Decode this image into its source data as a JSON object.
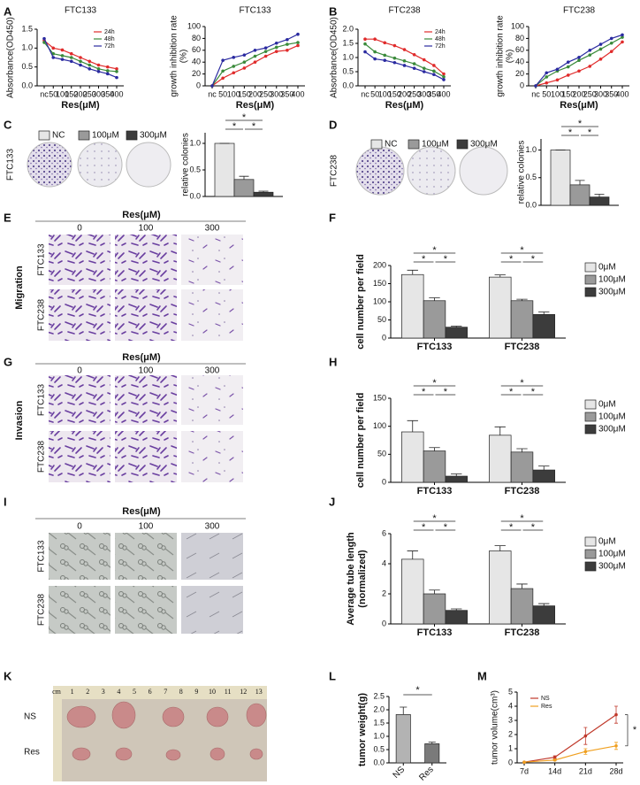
{
  "panel_letters": [
    "A",
    "B",
    "C",
    "D",
    "E",
    "F",
    "G",
    "H",
    "I",
    "J",
    "K",
    "L",
    "M"
  ],
  "colony_photos": [
    "FTC133",
    "FTC238"
  ],
  "micrographs": [
    {
      "header": "Res(μM)",
      "columns": [
        "0",
        "100",
        "300"
      ],
      "rows": [
        "FTC133",
        "FTC238"
      ],
      "side_label": "Migration"
    },
    {
      "header": "Res(μM)",
      "columns": [
        "0",
        "100",
        "300"
      ],
      "rows": [
        "FTC133",
        "FTC238"
      ],
      "side_label": "Invasion"
    },
    {
      "header": "Res(μM)",
      "columns": [
        "0",
        "100",
        "300"
      ],
      "rows": [
        "FTC133",
        "FTC238"
      ]
    }
  ],
  "xenograft_photo": {
    "ruler": [
      "cm",
      "1",
      "2",
      "3",
      "4",
      "5",
      "6",
      "7",
      "8",
      "9",
      "10",
      "11",
      "12",
      "13"
    ],
    "rows": [
      "NS",
      "Res"
    ]
  },
  "chart_data": [
    {
      "type": "line",
      "title": "FTC133",
      "xlabel": "Res(μM)",
      "ylabel": "Absorbance(OD450)",
      "categories": [
        "nc",
        "50",
        "100",
        "150",
        "200",
        "250",
        "300",
        "350",
        "400"
      ],
      "series": [
        {
          "name": "24h",
          "color": "#e02b2b",
          "values": [
            1.2,
            1.0,
            0.95,
            0.85,
            0.75,
            0.65,
            0.55,
            0.5,
            0.45
          ]
        },
        {
          "name": "48h",
          "color": "#3a8a3a",
          "values": [
            1.15,
            0.85,
            0.8,
            0.75,
            0.65,
            0.55,
            0.45,
            0.4,
            0.38
          ]
        },
        {
          "name": "72h",
          "color": "#2a2aa0",
          "values": [
            1.25,
            0.75,
            0.7,
            0.65,
            0.55,
            0.45,
            0.38,
            0.32,
            0.22
          ]
        }
      ],
      "ylim": [
        0,
        1.5
      ],
      "yticks": [
        {
          "value": 0,
          "label": "0.0"
        },
        0.5,
        {
          "value": 1,
          "label": "1.0"
        },
        1.5
      ]
    },
    {
      "type": "line",
      "title": "FTC133",
      "xlabel": "Res(μM)",
      "ylabel": [
        "growth inhibition rate",
        "(%)"
      ],
      "categories": [
        "nc",
        "50",
        "100",
        "150",
        "200",
        "250",
        "300",
        "350",
        "400"
      ],
      "series": [
        {
          "color": "#e02b2b",
          "values": [
            0,
            13,
            22,
            30,
            40,
            50,
            58,
            60,
            68
          ]
        },
        {
          "color": "#3a8a3a",
          "values": [
            0,
            25,
            33,
            40,
            50,
            58,
            65,
            70,
            73
          ]
        },
        {
          "color": "#2a2aa0",
          "values": [
            0,
            43,
            48,
            52,
            60,
            64,
            72,
            78,
            87
          ]
        }
      ],
      "ylim": [
        0,
        100
      ],
      "yticks": [
        0,
        20,
        40,
        60,
        80,
        100
      ]
    },
    {
      "type": "line",
      "title": "FTC238",
      "xlabel": "Res(μM)",
      "ylabel": "Absorbance(OD450)",
      "categories": [
        "nc",
        "50",
        "100",
        "150",
        "200",
        "250",
        "300",
        "350",
        "400"
      ],
      "series": [
        {
          "name": "24h",
          "color": "#e02b2b",
          "values": [
            1.65,
            1.65,
            1.52,
            1.42,
            1.28,
            1.1,
            0.92,
            0.72,
            0.42
          ]
        },
        {
          "name": "48h",
          "color": "#3a8a3a",
          "values": [
            1.48,
            1.2,
            1.08,
            0.98,
            0.88,
            0.78,
            0.62,
            0.52,
            0.32
          ]
        },
        {
          "name": "72h",
          "color": "#2a2aa0",
          "values": [
            1.2,
            0.95,
            0.9,
            0.82,
            0.72,
            0.62,
            0.5,
            0.4,
            0.22
          ]
        }
      ],
      "ylim": [
        0,
        2
      ],
      "yticks": [
        {
          "value": 0,
          "label": "0.0"
        },
        0.5,
        {
          "value": 1,
          "label": "1.0"
        },
        1.5,
        {
          "value": 2,
          "label": "2.0"
        }
      ]
    },
    {
      "type": "line",
      "title": "FTC238",
      "xlabel": "Res(μM)",
      "ylabel": [
        "growth inhibition rate",
        "(%)"
      ],
      "categories": [
        "nc",
        "50",
        "100",
        "150",
        "200",
        "250",
        "300",
        "350",
        "400"
      ],
      "series": [
        {
          "color": "#e02b2b",
          "values": [
            0,
            5,
            10,
            18,
            25,
            33,
            45,
            58,
            74
          ]
        },
        {
          "color": "#3a8a3a",
          "values": [
            0,
            15,
            25,
            32,
            43,
            52,
            62,
            72,
            82
          ]
        },
        {
          "color": "#2a2aa0",
          "values": [
            0,
            22,
            28,
            40,
            48,
            60,
            70,
            80,
            86
          ]
        }
      ],
      "ylim": [
        0,
        100
      ],
      "yticks": [
        0,
        20,
        40,
        60,
        80,
        100
      ]
    },
    {
      "type": "bar",
      "ylabel": "relative colonies",
      "categories": [
        null
      ],
      "series": [
        {
          "name": "NC",
          "color": "#e6e6e6",
          "values": [
            1.0
          ],
          "errors": [
            0
          ]
        },
        {
          "name": "100μM",
          "color": "#9a9a9a",
          "values": [
            0.32
          ],
          "errors": [
            0.06
          ]
        },
        {
          "name": "300μM",
          "color": "#3c3c3c",
          "values": [
            0.08
          ],
          "errors": [
            0.02
          ]
        }
      ],
      "ylim": [
        0,
        1.2
      ],
      "yticks": [
        {
          "value": 0,
          "label": "0.0"
        },
        0.5,
        {
          "value": 1,
          "label": "1.0"
        }
      ],
      "significance": [
        "*",
        "*",
        "*"
      ]
    },
    {
      "type": "bar",
      "ylabel": "relative colonies",
      "categories": [
        null
      ],
      "series": [
        {
          "name": "NC",
          "color": "#e6e6e6",
          "values": [
            1.0
          ],
          "errors": [
            0
          ]
        },
        {
          "name": "100μM",
          "color": "#9a9a9a",
          "values": [
            0.37
          ],
          "errors": [
            0.08
          ]
        },
        {
          "name": "300μM",
          "color": "#3c3c3c",
          "values": [
            0.15
          ],
          "errors": [
            0.05
          ]
        }
      ],
      "ylim": [
        0,
        1.2
      ],
      "yticks": [
        {
          "value": 0,
          "label": "0.0"
        },
        0.5,
        {
          "value": 1,
          "label": "1.0"
        }
      ],
      "significance": [
        "*",
        "*",
        "*"
      ]
    },
    {
      "type": "bar",
      "ylabel": "cell number per field",
      "categories": [
        "FTC133",
        "FTC238"
      ],
      "series": [
        {
          "name": "0μM",
          "color": "#e6e6e6",
          "values": [
            175,
            168
          ],
          "errors": [
            12,
            6
          ]
        },
        {
          "name": "100μM",
          "color": "#9a9a9a",
          "values": [
            103,
            103
          ],
          "errors": [
            8,
            4
          ]
        },
        {
          "name": "300μM",
          "color": "#3c3c3c",
          "values": [
            30,
            65
          ],
          "errors": [
            3,
            7
          ]
        }
      ],
      "ylim": [
        0,
        200
      ],
      "yticks": [
        0,
        50,
        100,
        150,
        200
      ],
      "significance": [
        "*",
        "*",
        "*",
        "*",
        "*",
        "*"
      ]
    },
    {
      "type": "bar",
      "ylabel": "cell number per field",
      "categories": [
        "FTC133",
        "FTC238"
      ],
      "series": [
        {
          "name": "0μM",
          "color": "#e6e6e6",
          "values": [
            90,
            84
          ],
          "errors": [
            20,
            15
          ]
        },
        {
          "name": "100μM",
          "color": "#9a9a9a",
          "values": [
            56,
            54
          ],
          "errors": [
            6,
            6
          ]
        },
        {
          "name": "300μM",
          "color": "#3c3c3c",
          "values": [
            11,
            22
          ],
          "errors": [
            4,
            7
          ]
        }
      ],
      "ylim": [
        0,
        150
      ],
      "yticks": [
        0,
        50,
        100,
        150
      ],
      "significance": [
        "*",
        "*",
        "*",
        "*",
        "*",
        "*"
      ]
    },
    {
      "type": "bar",
      "ylabel": [
        "Average tube length",
        "(normalized)"
      ],
      "categories": [
        "FTC133",
        "FTC238"
      ],
      "series": [
        {
          "name": "0μM",
          "color": "#e6e6e6",
          "values": [
            4.3,
            4.85
          ],
          "errors": [
            0.55,
            0.35
          ]
        },
        {
          "name": "100μM",
          "color": "#9a9a9a",
          "values": [
            2.0,
            2.35
          ],
          "errors": [
            0.25,
            0.3
          ]
        },
        {
          "name": "300μM",
          "color": "#3c3c3c",
          "values": [
            0.9,
            1.2
          ],
          "errors": [
            0.1,
            0.15
          ]
        }
      ],
      "ylim": [
        0,
        6
      ],
      "yticks": [
        0,
        2,
        4,
        6
      ],
      "significance": [
        "*",
        "*",
        "*",
        "*",
        "*",
        "*"
      ]
    },
    {
      "type": "bar",
      "ylabel": "tumor weight(g)",
      "categories": [
        "NS",
        "Res"
      ],
      "colors": [
        "#b3b3b3",
        "#7a7a7a"
      ],
      "series": [
        {
          "values": [
            1.82,
            0.72
          ],
          "errors": [
            0.28,
            0.06
          ]
        }
      ],
      "ylim": [
        0,
        2.5
      ],
      "yticks": [
        {
          "value": 0,
          "label": "0.0"
        },
        0.5,
        {
          "value": 1,
          "label": "1.0"
        },
        1.5,
        {
          "value": 2,
          "label": "2.0"
        },
        2.5
      ],
      "significance": [
        "*"
      ]
    },
    {
      "type": "line",
      "ylabel": "tumor volume(cm³)",
      "categories": [
        "7d",
        "14d",
        "21d",
        "28d"
      ],
      "series": [
        {
          "name": "NS",
          "color": "#c0392b",
          "values": [
            0.05,
            0.4,
            1.9,
            3.4
          ],
          "errors": [
            0,
            0.1,
            0.6,
            0.6
          ]
        },
        {
          "name": "Res",
          "color": "#f0a020",
          "values": [
            0.05,
            0.2,
            0.8,
            1.2
          ],
          "errors": [
            0,
            0.05,
            0.2,
            0.25
          ]
        }
      ],
      "ylim": [
        0,
        5
      ],
      "yticks": [
        0,
        1,
        2,
        3,
        4,
        5
      ],
      "significance": [
        "*"
      ]
    }
  ]
}
